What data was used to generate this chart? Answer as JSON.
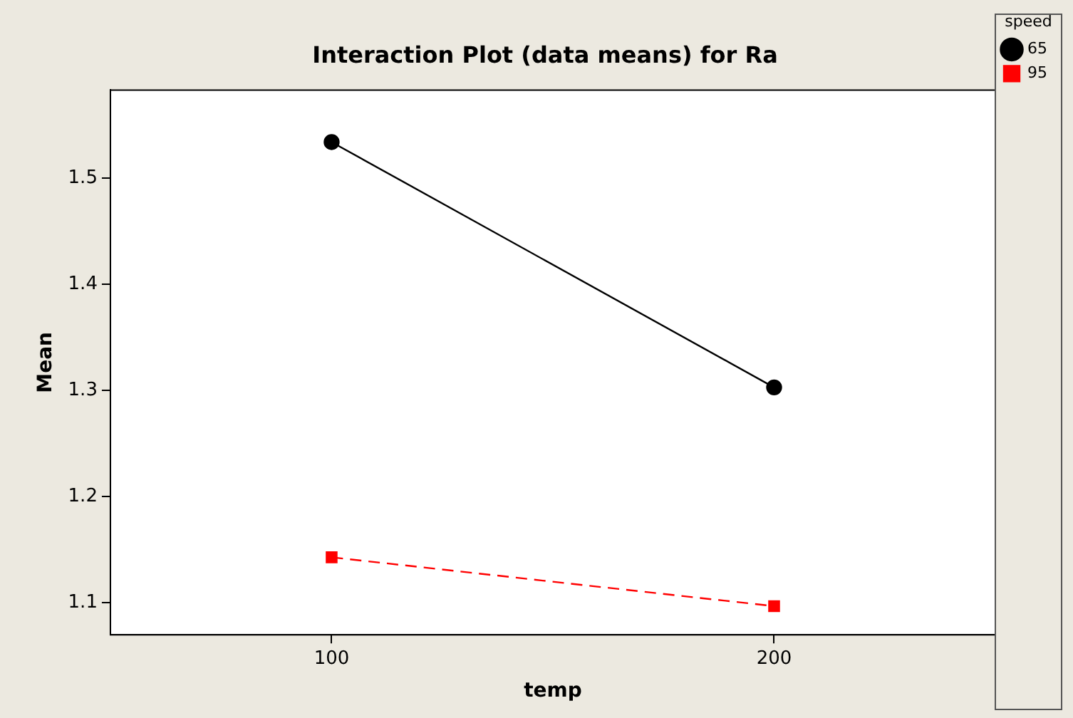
{
  "chart_data": {
    "type": "line",
    "title": "Interaction Plot (data means) for Ra",
    "xlabel": "temp",
    "ylabel": "Mean",
    "legend_title": "speed",
    "categories": [
      "100",
      "200"
    ],
    "series": [
      {
        "name": "65",
        "color": "#000000",
        "values": [
          1.534,
          1.303
        ],
        "marker": "circle",
        "line_style": "solid"
      },
      {
        "name": "95",
        "color": "#ff0000",
        "values": [
          1.143,
          1.097
        ],
        "marker": "square",
        "line_style": "dashed"
      }
    ],
    "ylim": [
      1.07,
      1.583
    ],
    "yticks": [
      1.1,
      1.2,
      1.3,
      1.4,
      1.5
    ],
    "grid": false,
    "legend": "top right"
  }
}
